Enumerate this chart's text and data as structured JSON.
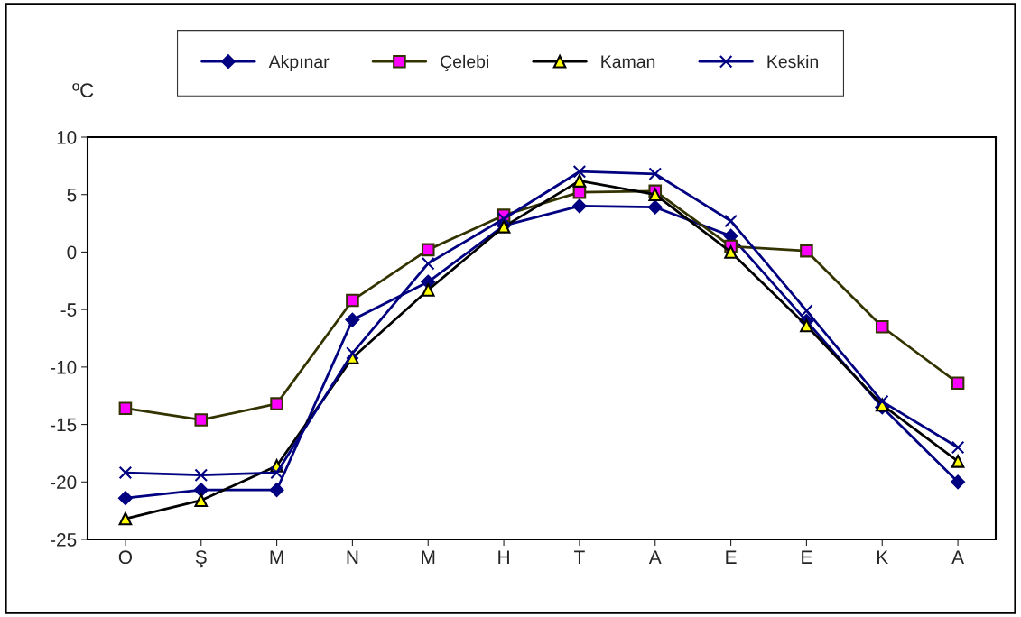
{
  "chart_data": {
    "type": "line",
    "ylabel": "ºC",
    "categories": [
      "O",
      "Ş",
      "M",
      "N",
      "M",
      "H",
      "T",
      "A",
      "E",
      "E",
      "K",
      "A"
    ],
    "series": [
      {
        "name": "Akpınar",
        "color": "#000080",
        "marker": "diamond",
        "values": [
          -21.4,
          -20.7,
          -20.7,
          -5.9,
          -2.6,
          2.3,
          4.0,
          3.9,
          1.4,
          -6.0,
          -13.5,
          -20.0
        ]
      },
      {
        "name": "Çelebi",
        "color": "#333300",
        "marker": "square",
        "values": [
          -13.6,
          -14.6,
          -13.2,
          -4.2,
          0.2,
          3.2,
          5.2,
          5.3,
          0.5,
          0.1,
          -6.5,
          -11.4
        ]
      },
      {
        "name": "Kaman",
        "color": "#000000",
        "marker": "triangle",
        "values": [
          -23.2,
          -21.6,
          -18.6,
          -9.2,
          -3.3,
          2.2,
          6.2,
          5.0,
          0.0,
          -6.4,
          -13.3,
          -18.2
        ]
      },
      {
        "name": "Keskin",
        "color": "#000080",
        "marker": "cross",
        "values": [
          -19.2,
          -19.4,
          -19.2,
          -8.8,
          -1.0,
          2.9,
          7.0,
          6.8,
          2.7,
          -5.1,
          -13.0,
          -17.0
        ]
      }
    ],
    "ylim": [
      -25,
      10
    ],
    "yticks": [
      -25,
      -20,
      -15,
      -10,
      -5,
      0,
      5,
      10
    ],
    "grid": false,
    "legend": "top",
    "line_style": "solid"
  }
}
